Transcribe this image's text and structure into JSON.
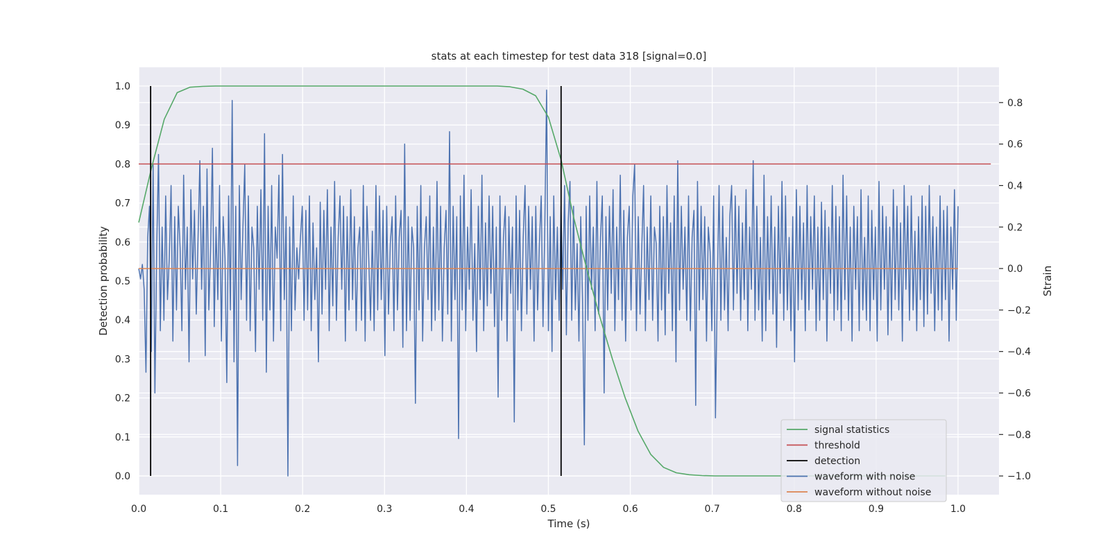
{
  "chart_data": {
    "type": "line",
    "title": "stats at each timestep for test data 318 [signal=0.0]",
    "xlabel": "Time (s)",
    "ylabel_left": "Detection probability",
    "ylabel_right": "Strain",
    "xlim": [
      0.0,
      1.05
    ],
    "ylim_left": [
      -0.048,
      1.048
    ],
    "ylim_right": [
      -1.09,
      0.97
    ],
    "x_ticks": [
      0.0,
      0.1,
      0.2,
      0.3,
      0.4,
      0.5,
      0.6,
      0.7,
      0.8,
      0.9,
      1.0
    ],
    "x_tick_labels": [
      "0.0",
      "0.1",
      "0.2",
      "0.3",
      "0.4",
      "0.5",
      "0.6",
      "0.7",
      "0.8",
      "0.9",
      "1.0"
    ],
    "y_left_ticks": [
      0.0,
      0.1,
      0.2,
      0.3,
      0.4,
      0.5,
      0.6,
      0.7,
      0.8,
      0.9,
      1.0
    ],
    "y_left_tick_labels": [
      "0.0",
      "0.1",
      "0.2",
      "0.3",
      "0.4",
      "0.5",
      "0.6",
      "0.7",
      "0.8",
      "0.9",
      "1.0"
    ],
    "y_right_ticks": [
      -1.0,
      -0.8,
      -0.6,
      -0.4,
      -0.2,
      0.0,
      0.2,
      0.4,
      0.6,
      0.8
    ],
    "y_right_tick_labels": [
      "−1.0",
      "−0.8",
      "−0.6",
      "−0.4",
      "−0.2",
      "0.0",
      "0.2",
      "0.4",
      "0.6",
      "0.8"
    ],
    "grid": true,
    "legend_position": "lower-right",
    "background_color": "#eaeaf2",
    "series": [
      {
        "name": "signal statistics",
        "axis": "left",
        "color": "#55a868",
        "x": [
          0.0,
          0.0156,
          0.0312,
          0.0469,
          0.0625,
          0.0781,
          0.0938,
          0.1094,
          0.125,
          0.1406,
          0.1562,
          0.1719,
          0.1875,
          0.2031,
          0.2188,
          0.2344,
          0.25,
          0.2656,
          0.2812,
          0.2969,
          0.3125,
          0.3281,
          0.3438,
          0.3594,
          0.375,
          0.3906,
          0.4062,
          0.4219,
          0.4375,
          0.4531,
          0.4688,
          0.4844,
          0.5,
          0.5156,
          0.5312,
          0.5469,
          0.5625,
          0.5781,
          0.5938,
          0.6094,
          0.625,
          0.6406,
          0.6562,
          0.6719,
          0.6875,
          0.7031,
          0.7188,
          0.7344,
          0.75,
          0.7656,
          0.7812,
          0.7969,
          0.8125,
          0.8281,
          0.8438,
          0.8594,
          0.875,
          0.8906,
          0.9062,
          0.9219,
          0.9375,
          0.9531,
          0.9688,
          0.9844
        ],
        "y": [
          0.65,
          0.79,
          0.915,
          0.983,
          0.997,
          0.999,
          1.0,
          1.0,
          1.0,
          1.0,
          1.0,
          1.0,
          1.0,
          1.0,
          1.0,
          1.0,
          1.0,
          1.0,
          1.0,
          1.0,
          1.0,
          1.0,
          1.0,
          1.0,
          1.0,
          1.0,
          1.0,
          1.0,
          1.0,
          0.998,
          0.992,
          0.975,
          0.92,
          0.81,
          0.66,
          0.53,
          0.41,
          0.3,
          0.2,
          0.115,
          0.055,
          0.022,
          0.008,
          0.003,
          0.001,
          0.0,
          0.0,
          0.0,
          0.0,
          0.0,
          0.0,
          0.0,
          0.0,
          0.0,
          0.0,
          0.0,
          0.0,
          0.0,
          0.0,
          0.0,
          0.0,
          0.0,
          0.0,
          0.0
        ]
      },
      {
        "name": "threshold",
        "axis": "left",
        "color": "#c44e52",
        "x": [
          0.0,
          1.04
        ],
        "y": [
          0.8,
          0.8
        ]
      },
      {
        "name": "detection",
        "axis": "left",
        "color": "#000000",
        "vlines_x": [
          0.0145,
          0.5155
        ],
        "y_range": [
          0.0,
          1.0
        ]
      },
      {
        "name": "waveform with noise",
        "axis": "right",
        "color": "#4c72b0",
        "x_start": 0.0,
        "x_end": 1.0,
        "values": [
          0.0,
          -0.05,
          0.02,
          -0.1,
          -0.5,
          0.15,
          0.3,
          -0.4,
          0.5,
          -0.6,
          0.1,
          0.55,
          -0.3,
          0.2,
          -0.25,
          0.35,
          -0.15,
          0.05,
          0.4,
          -0.35,
          0.25,
          -0.2,
          0.3,
          0.1,
          -0.3,
          0.45,
          -0.1,
          0.2,
          -0.45,
          0.38,
          -0.05,
          0.28,
          -0.22,
          0.15,
          0.52,
          -0.1,
          0.3,
          -0.42,
          0.48,
          -0.2,
          0.1,
          0.58,
          -0.28,
          0.2,
          -0.15,
          0.4,
          -0.35,
          0.25,
          0.05,
          -0.55,
          0.35,
          -0.2,
          0.81,
          -0.45,
          0.3,
          -0.95,
          0.4,
          -0.15,
          0.2,
          0.5,
          -0.25,
          0.35,
          -0.3,
          0.2,
          0.1,
          -0.4,
          0.3,
          -0.1,
          0.38,
          -0.25,
          0.65,
          -0.5,
          0.3,
          -0.2,
          0.4,
          -0.35,
          0.2,
          0.05,
          0.45,
          -0.3,
          0.55,
          -0.15,
          0.25,
          -1.0,
          0.2,
          -0.3,
          0.35,
          -0.2,
          0.1,
          -0.05,
          0.15,
          0.3,
          -0.25,
          0.28,
          -0.2,
          0.35,
          -0.3,
          0.22,
          -0.15,
          0.1,
          -0.45,
          0.32,
          -0.22,
          0.28,
          -0.1,
          0.38,
          -0.3,
          0.2,
          -0.18,
          0.42,
          -0.25,
          0.15,
          0.35,
          -0.1,
          0.3,
          -0.35,
          0.25,
          -0.2,
          0.38,
          -0.15,
          0.25,
          -0.3,
          0.1,
          0.2,
          -0.25,
          0.4,
          -0.35,
          0.3,
          0.05,
          -0.25,
          0.18,
          -0.3,
          0.4,
          -0.2,
          0.35,
          -0.15,
          0.28,
          -0.42,
          0.3,
          -0.22,
          0.12,
          0.25,
          -0.3,
          0.35,
          -0.2,
          0.15,
          0.28,
          -0.38,
          0.6,
          -0.3,
          0.25,
          -0.25,
          0.2,
          0.1,
          -0.65,
          0.3,
          -0.2,
          0.4,
          -0.35,
          0.1,
          0.25,
          -0.15,
          0.35,
          -0.3,
          0.2,
          -0.25,
          0.42,
          -0.2,
          0.3,
          -0.35,
          0.1,
          0.28,
          -0.22,
          0.66,
          -0.35,
          0.3,
          -0.15,
          0.25,
          -0.82,
          0.35,
          -0.2,
          0.45,
          -0.3,
          0.2,
          -0.1,
          0.38,
          -0.25,
          0.12,
          -0.4,
          0.3,
          -0.15,
          0.45,
          -0.3,
          0.22,
          -0.18,
          0.35,
          -0.12,
          0.3,
          -0.28,
          0.2,
          -0.62,
          0.35,
          -0.25,
          0.15,
          0.3,
          -0.35,
          0.25,
          -0.12,
          0.2,
          -0.74,
          0.35,
          -0.2,
          0.28,
          -0.3,
          0.15,
          0.4,
          -0.22,
          0.3,
          -0.1,
          0.25,
          -0.35,
          0.3,
          -0.2,
          0.12,
          0.35,
          -0.28,
          0.2,
          0.86,
          -0.3,
          0.25,
          -0.4,
          0.35,
          -0.15,
          0.2,
          -0.25,
          0.3,
          -0.1,
          0.4,
          -0.32,
          0.22,
          0.42,
          -0.25,
          0.3,
          -0.2,
          0.12,
          -0.35,
          0.25,
          -0.15,
          -0.85,
          0.3,
          -0.25,
          0.35,
          -0.1,
          0.2,
          -0.3,
          0.42,
          -0.22,
          0.15,
          0.35,
          -0.6,
          0.25,
          -0.2,
          0.3,
          -0.12,
          0.38,
          -0.3,
          0.2,
          -0.15,
          0.45,
          -0.25,
          0.28,
          -0.35,
          0.15,
          0.3,
          -0.2,
          0.35,
          0.5,
          -0.3,
          0.25,
          -0.22,
          0.1,
          0.4,
          -0.3,
          0.2,
          -0.15,
          0.35,
          -0.25,
          0.2,
          0.12,
          -0.35,
          0.3,
          -0.2,
          0.25,
          -0.32,
          0.4,
          -0.12,
          0.22,
          -0.3,
          0.35,
          -0.45,
          0.52,
          -0.2,
          0.3,
          -0.1,
          0.2,
          -0.25,
          0.35,
          -0.3,
          0.15,
          0.28,
          -0.66,
          0.42,
          -0.2,
          0.3,
          -0.15,
          0.25,
          -0.35,
          0.2,
          0.08,
          -0.3,
          0.35,
          -0.72,
          -0.1,
          0.4,
          -0.25,
          0.3,
          -0.2,
          0.15,
          -0.3,
          0.25,
          0.4,
          -0.2,
          0.35,
          -0.12,
          0.3,
          -0.25,
          0.22,
          -0.15,
          0.38,
          -0.3,
          0.2,
          -0.1,
          0.52,
          -0.25,
          0.3,
          -0.2,
          0.15,
          -0.35,
          0.45,
          -0.3,
          0.25,
          -0.15,
          0.35,
          -0.22,
          0.2,
          -0.38,
          0.3,
          -0.12,
          0.42,
          -0.25,
          0.35,
          -0.2,
          0.15,
          -0.3,
          0.25,
          -0.45,
          0.38,
          -0.2,
          0.3,
          -0.15,
          0.22,
          -0.3,
          0.4,
          -0.2,
          0.25,
          -0.1,
          0.35,
          -0.3,
          0.2,
          -0.25,
          0.32,
          -0.15,
          0.28,
          -0.35,
          0.2,
          -0.12,
          0.4,
          -0.25,
          0.3,
          -0.2,
          0.25,
          -0.3,
          0.45,
          -0.15,
          0.35,
          -0.25,
          0.2,
          -0.35,
          0.3,
          -0.1,
          0.25,
          -0.3,
          0.38,
          -0.2,
          0.15,
          -0.25,
          0.35,
          -0.3,
          0.28,
          -0.15,
          0.2,
          -0.35,
          0.42,
          -0.2,
          0.3,
          -0.1,
          0.25,
          -0.32,
          0.2,
          -0.25,
          0.38,
          -0.15,
          0.3,
          -0.2,
          0.22,
          -0.35,
          0.4,
          -0.1,
          0.3,
          -0.25,
          0.35,
          -0.2,
          0.18,
          -0.3,
          0.25,
          -0.15,
          0.35,
          -0.28,
          0.3,
          -0.22,
          0.4,
          -0.12,
          0.25,
          -0.3,
          0.2,
          -0.2,
          0.35,
          -0.25,
          0.28,
          -0.15,
          0.3,
          -0.35,
          0.2,
          -0.1,
          0.38,
          -0.25,
          0.3
        ]
      },
      {
        "name": "waveform without noise",
        "axis": "right",
        "color": "#dd8452",
        "x": [
          0.0,
          1.0
        ],
        "y": [
          0.0,
          0.0
        ]
      }
    ],
    "legend": [
      {
        "label": "signal statistics",
        "color": "#55a868"
      },
      {
        "label": "threshold",
        "color": "#c44e52"
      },
      {
        "label": "detection",
        "color": "#000000"
      },
      {
        "label": "waveform with noise",
        "color": "#4c72b0"
      },
      {
        "label": "waveform without noise",
        "color": "#dd8452"
      }
    ]
  }
}
